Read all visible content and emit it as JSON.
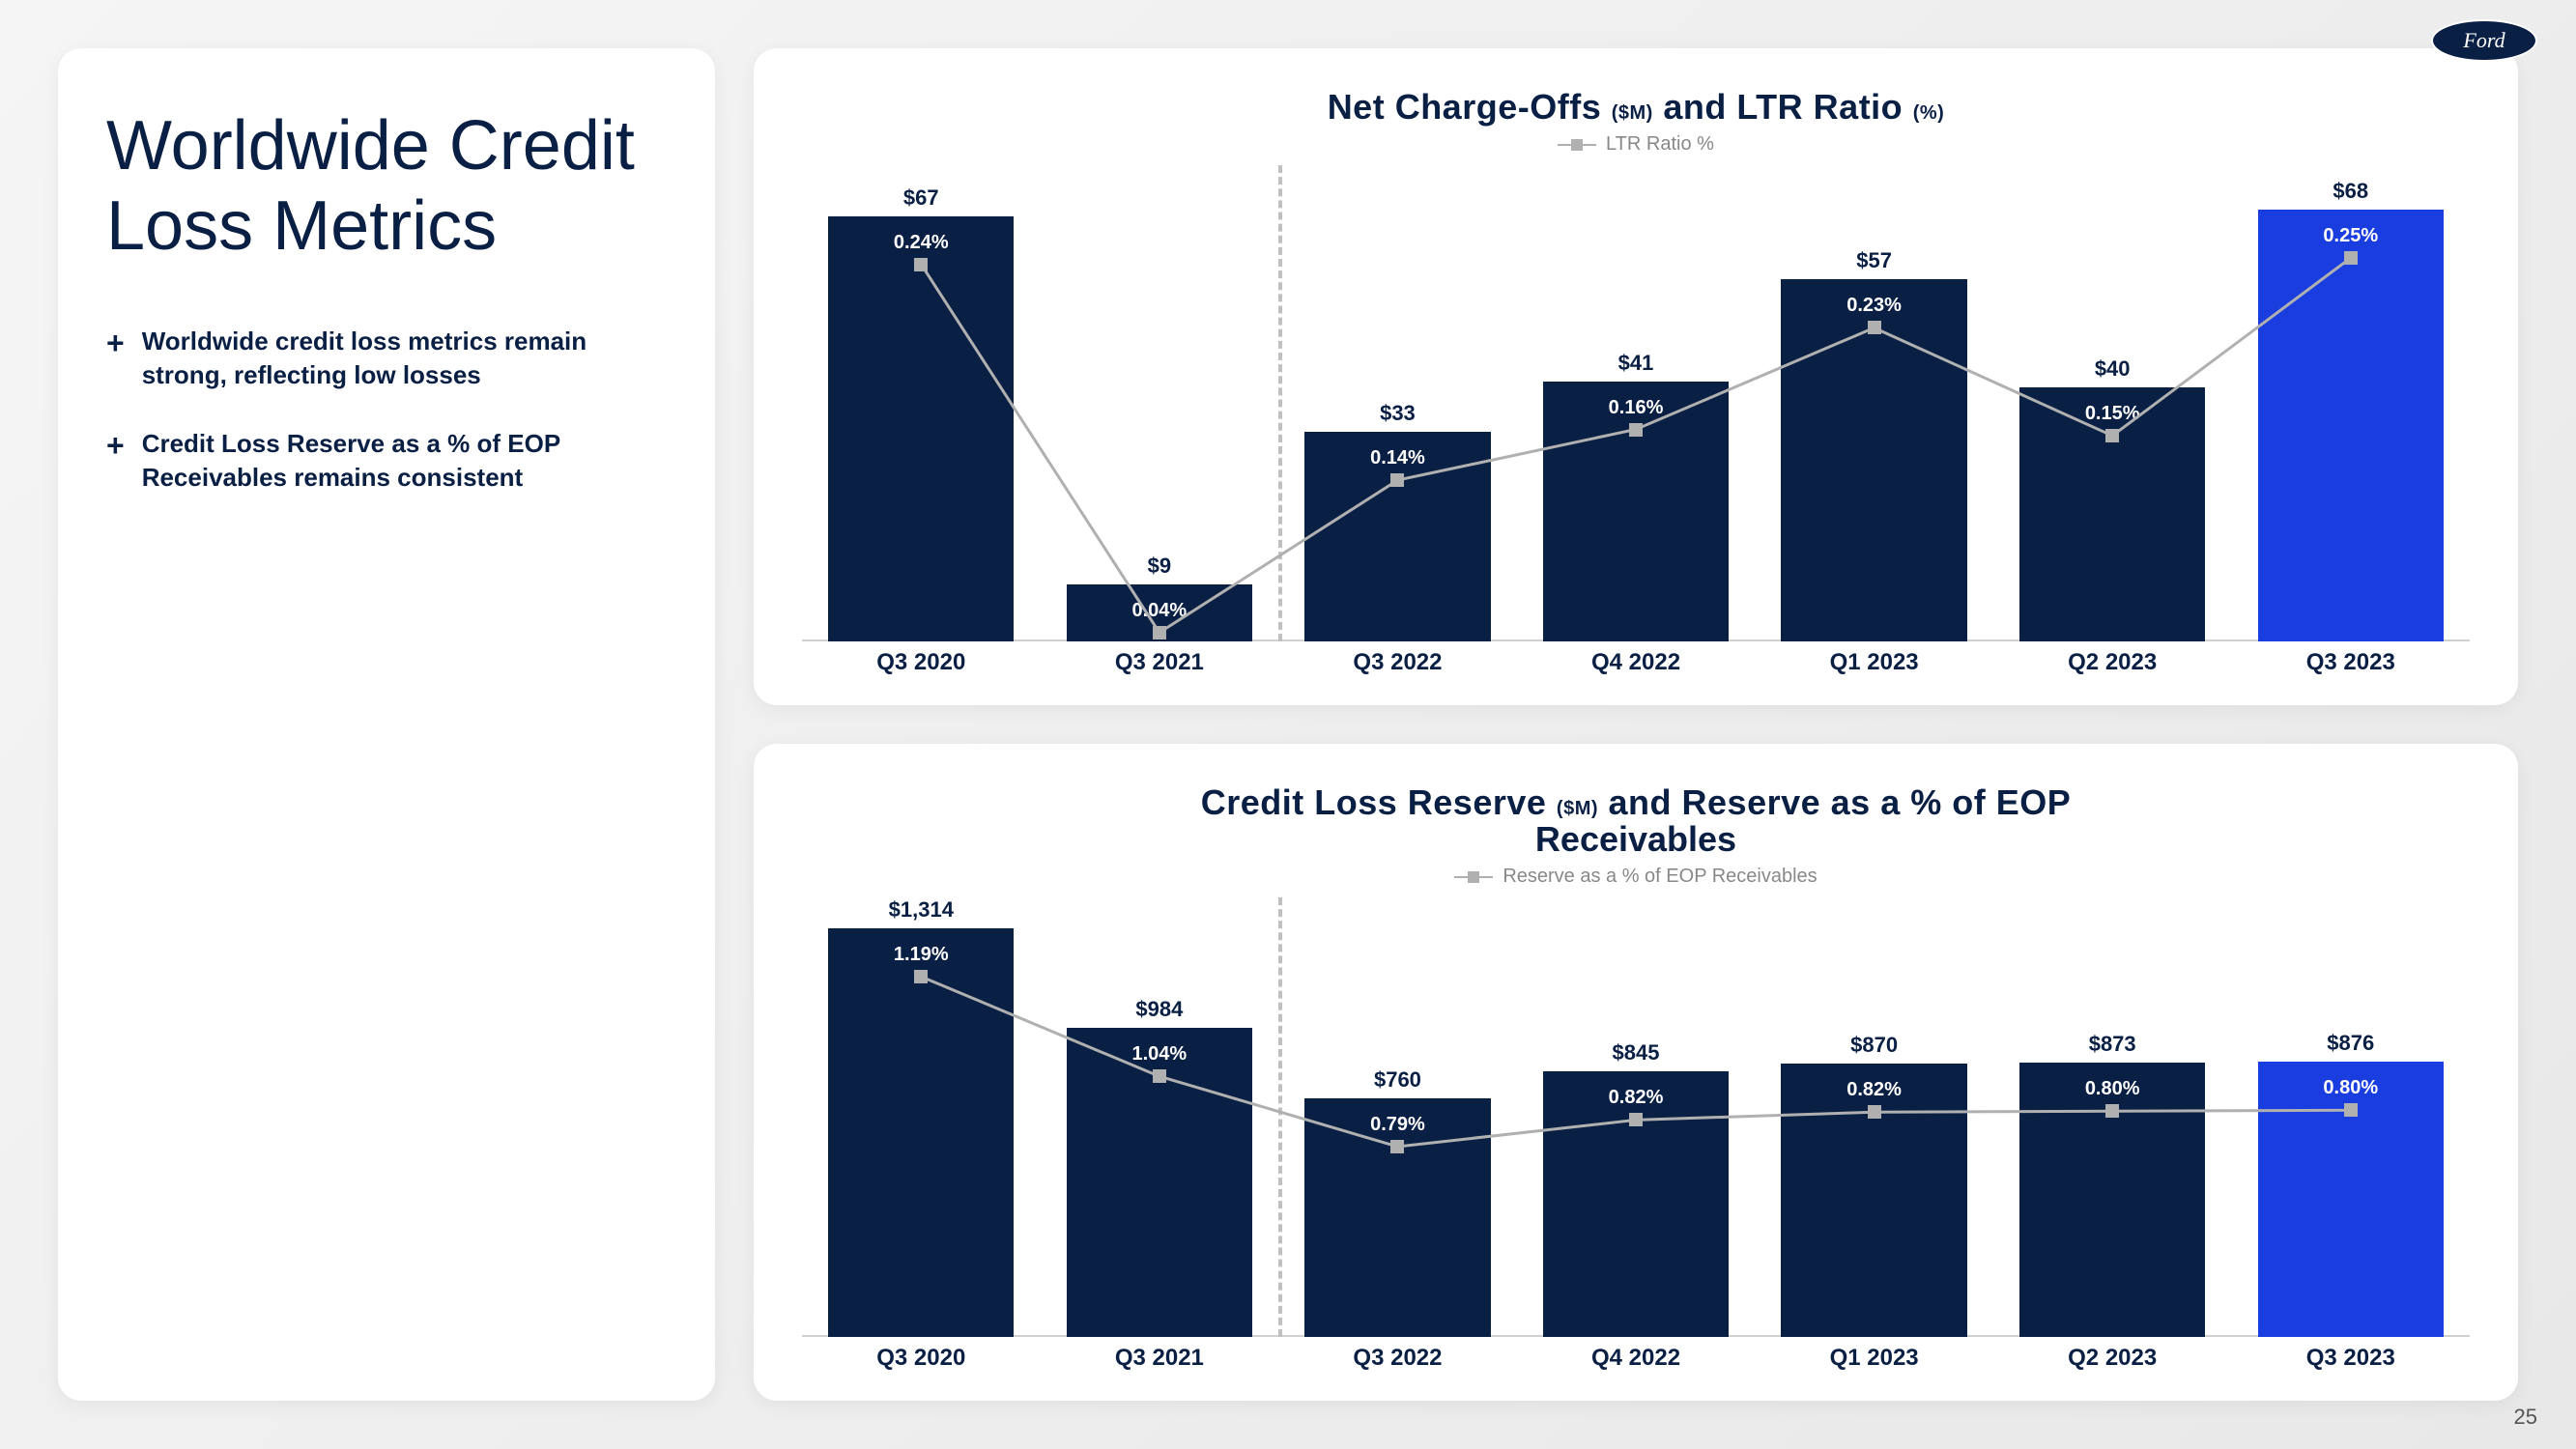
{
  "page_number": "25",
  "logo_text": "Ford",
  "sidebar": {
    "title": "Worldwide Credit Loss Metrics",
    "bullets": [
      "Worldwide credit loss metrics remain strong, reflecting low losses",
      "Credit Loss Reserve as a % of EOP Receivables remains consistent"
    ]
  },
  "chart1": {
    "title_pre": "Net Charge-Offs",
    "title_sub1": "($M)",
    "title_mid": " and LTR Ratio ",
    "title_sub2": "(%)",
    "legend_label": "LTR Ratio %",
    "categories": [
      "Q3 2020",
      "Q3 2021",
      "Q3 2022",
      "Q4 2022",
      "Q1 2023",
      "Q2 2023",
      "Q3 2023"
    ],
    "bar_values": [
      67,
      9,
      33,
      41,
      57,
      40,
      68
    ],
    "bar_labels": [
      "$67",
      "$9",
      "$33",
      "$41",
      "$57",
      "$40",
      "$68"
    ],
    "line_labels": [
      "0.24%",
      "0.04%",
      "0.14%",
      "0.16%",
      "0.23%",
      "0.15%",
      "0.25%"
    ],
    "bar_colors": [
      "#0a1f44",
      "#0a1f44",
      "#0a1f44",
      "#0a1f44",
      "#0a1f44",
      "#0a1f44",
      "#1a3de0"
    ],
    "max_value": 75,
    "divider_after_index": 2,
    "background_color": "#ffffff",
    "line_color": "#b0b0b0"
  },
  "chart2": {
    "title_pre": "Credit Loss Reserve",
    "title_sub1": "($M)",
    "title_mid": " and Reserve as a % of EOP",
    "title_line2": "Receivables",
    "legend_label": "Reserve as a % of EOP Receivables",
    "categories": [
      "Q3 2020",
      "Q3 2021",
      "Q3 2022",
      "Q4 2022",
      "Q1 2023",
      "Q2 2023",
      "Q3 2023"
    ],
    "bar_values": [
      1314,
      984,
      760,
      845,
      870,
      873,
      876
    ],
    "bar_labels": [
      "$1,314",
      "$984",
      "$760",
      "$845",
      "$870",
      "$873",
      "$876"
    ],
    "line_labels": [
      "1.19%",
      "1.04%",
      "0.79%",
      "0.82%",
      "0.82%",
      "0.80%",
      "0.80%"
    ],
    "bar_colors": [
      "#0a1f44",
      "#0a1f44",
      "#0a1f44",
      "#0a1f44",
      "#0a1f44",
      "#0a1f44",
      "#1a3de0"
    ],
    "max_value": 1400,
    "divider_after_index": 2,
    "background_color": "#ffffff",
    "line_color": "#b0b0b0"
  }
}
